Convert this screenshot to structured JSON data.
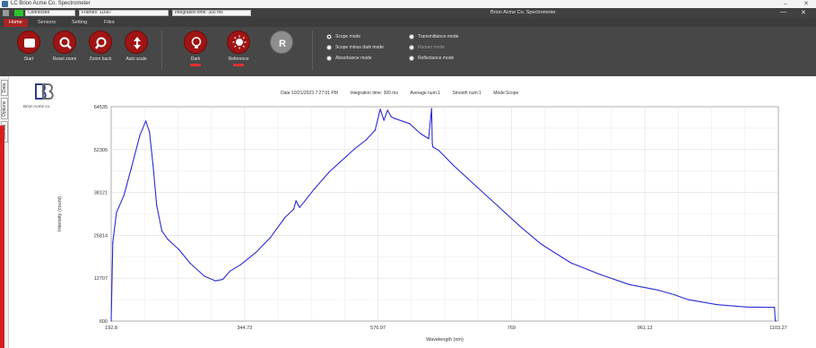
{
  "window": {
    "title": "LC Brion Acme Co. Spectrometer",
    "controls": [
      "–",
      "✕"
    ]
  },
  "status": {
    "connection": "Connected",
    "frames": "Frames: 11687",
    "integration": "Integration time: 300 ms",
    "center_title": "Brion Acme Co. Spectrometer",
    "right_controls": [
      "—",
      "✕"
    ],
    "led_color": "#2cc52c"
  },
  "tabs": [
    "Home",
    "Sensors",
    "Setting",
    "Files"
  ],
  "ribbon": {
    "buttons": [
      {
        "label": "Start",
        "icon": "square-icon"
      },
      {
        "label": "Reset zoom",
        "icon": "magnifier-icon"
      },
      {
        "label": "Zoom back",
        "icon": "magnifier-back-icon"
      },
      {
        "label": "Auto scale",
        "icon": "vertical-arrows-icon"
      },
      {
        "label": "Dark",
        "icon": "bulb-off-icon"
      },
      {
        "label": "Reference",
        "icon": "bulb-on-icon"
      },
      {
        "label": "",
        "icon": "r-letter-icon",
        "glyph": "R"
      }
    ],
    "modes_left": [
      {
        "label": "Scope mode",
        "selected": true
      },
      {
        "label": "Scope minus dark mode",
        "selected": false
      },
      {
        "label": "Absorbance mode",
        "selected": false
      }
    ],
    "modes_right": [
      {
        "label": "Transmittance mode",
        "selected": false
      },
      {
        "label": "Raman mode",
        "selected": false,
        "disabled": true
      },
      {
        "label": "Reflectance mode",
        "selected": false
      }
    ],
    "accent": "#a01414"
  },
  "side_tabs": [
    "Data",
    "Options",
    "Manual"
  ],
  "logo": {
    "text": "Brion Acme co."
  },
  "info": {
    "date": "Date:10/21/2023 7:27:01 PM",
    "integration": "Integration time: 300 ms",
    "average": "Average num:1",
    "smooth": "Smooth num:1",
    "mode": "Mode:Scope"
  },
  "chart_data": {
    "type": "line",
    "xlabel": "Wavelength (nm)",
    "ylabel": "Intensity (count)",
    "xlim": [
      192.8,
      1103.27
    ],
    "ylim": [
      600,
      64535
    ],
    "x_ticks": [
      "192.8",
      "344.73",
      "576.97",
      "769",
      "961.13",
      "1103.27"
    ],
    "y_ticks": [
      "600",
      "12707",
      "25814",
      "38121",
      "52305",
      "64535"
    ],
    "grid": true,
    "line_color": "#2b2bd9",
    "series": [
      {
        "x": [
          192.8,
          195,
          200,
          210,
          220,
          232,
          240,
          245,
          250,
          255,
          262,
          270,
          285,
          300,
          320,
          335,
          345,
          355,
          370,
          390,
          410,
          430,
          442,
          445,
          450,
          470,
          490,
          505,
          525,
          540,
          553,
          560,
          565,
          570,
          575,
          580,
          600,
          615,
          626,
          630,
          631,
          632,
          640,
          660,
          690,
          720,
          750,
          780,
          820,
          860,
          900,
          940,
          961,
          980,
          1020,
          1060,
          1090,
          1098,
          1099,
          1100
        ],
        "y": [
          600,
          24000,
          33000,
          38000,
          46000,
          56000,
          60300,
          57000,
          47000,
          35000,
          27500,
          25000,
          22000,
          18000,
          14000,
          12600,
          13000,
          15500,
          17500,
          21000,
          25500,
          31500,
          34000,
          36500,
          34500,
          40000,
          45000,
          48000,
          52000,
          54500,
          57500,
          63800,
          60500,
          63500,
          61500,
          61000,
          59500,
          56500,
          55000,
          64000,
          53500,
          52500,
          51500,
          47000,
          41000,
          35000,
          29000,
          23500,
          18000,
          14500,
          11500,
          9800,
          8500,
          7000,
          5500,
          4800,
          4700,
          4700,
          900,
          600
        ]
      }
    ]
  }
}
